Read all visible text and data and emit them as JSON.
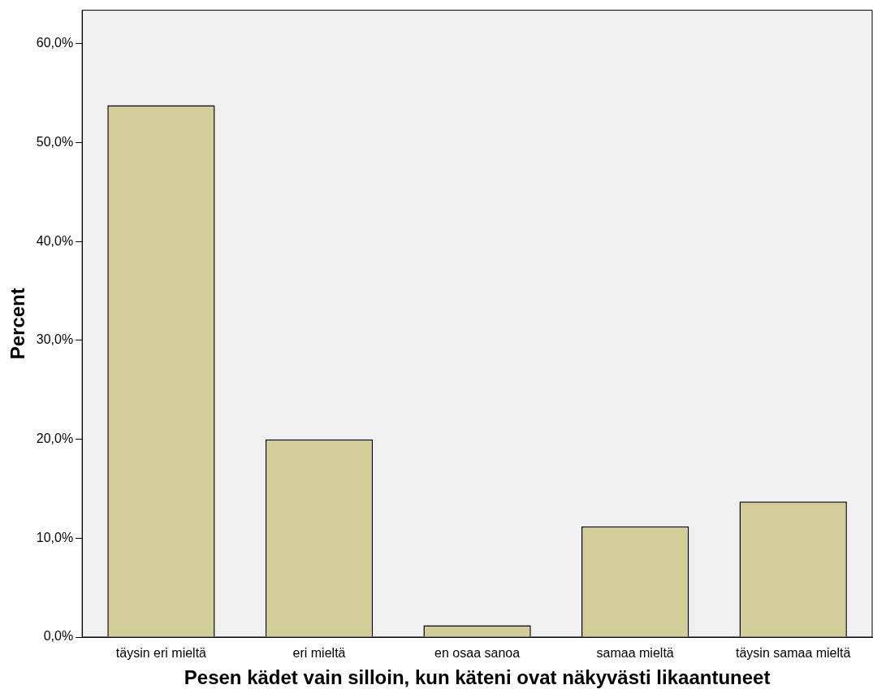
{
  "chart_data": {
    "type": "bar",
    "xlabel": "Pesen kädet vain silloin, kun käteni ovat näkyvästi likaantuneet",
    "ylabel": "Percent",
    "categories": [
      "täysin eri mieltä",
      "eri mieltä",
      "en osaa sanoa",
      "samaa mieltä",
      "täysin samaa mieltä"
    ],
    "values": [
      53.8,
      20.0,
      1.2,
      11.2,
      13.7
    ],
    "color": "#d3ce97",
    "ylim": [
      0,
      63.4
    ],
    "yticks": [
      {
        "value": 0,
        "label": "0,0%"
      },
      {
        "value": 10,
        "label": "10,0%"
      },
      {
        "value": 20,
        "label": "20,0%"
      },
      {
        "value": 30,
        "label": "30,0%"
      },
      {
        "value": 40,
        "label": "40,0%"
      },
      {
        "value": 50,
        "label": "50,0%"
      },
      {
        "value": 60,
        "label": "60,0%"
      }
    ],
    "grid": false,
    "legend": false
  }
}
